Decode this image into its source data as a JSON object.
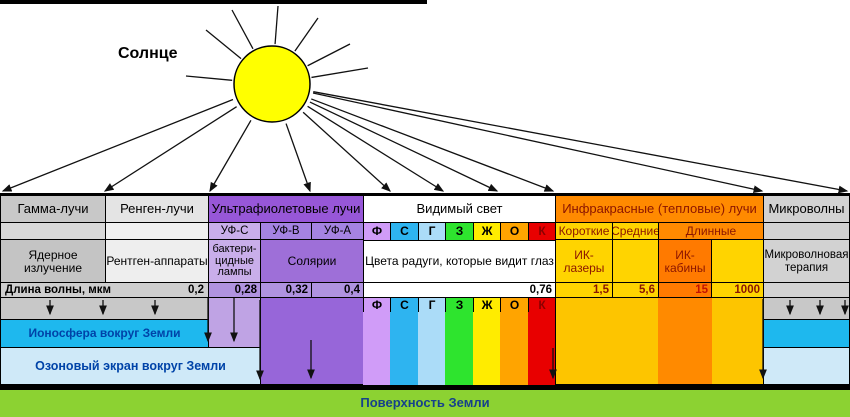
{
  "sun_label": "Солнце",
  "bands": {
    "gamma": {
      "header": "Гамма-лучи",
      "application": "Ядерное излучение"
    },
    "xray": {
      "header": "Ренген-лучи",
      "application": "Рентген-аппараты"
    },
    "uv": {
      "header": "Ультрафиолетовые лучи",
      "sub_bands": [
        "УФ-С",
        "УФ-В",
        "УФ-А"
      ],
      "application_uvc": "бактери-цидные лампы",
      "application_uvba": "Солярии"
    },
    "visible": {
      "header": "Видимый свет",
      "application": "Цвета радуги, которые видит глаз"
    },
    "infrared": {
      "header": "Инфракрасные (тепловые) лучи",
      "sub_bands": [
        "Короткие",
        "Средние",
        "Длинные"
      ],
      "application_short": "ИК-лазеры",
      "application_long": "ИК-кабины"
    },
    "microwave": {
      "header": "Микроволны",
      "application": "Микроволновая терапия"
    }
  },
  "spectrum_letters": [
    {
      "char": "Ф",
      "name": "violet",
      "color": "#d09cf8",
      "text_color": "#000000"
    },
    {
      "char": "С",
      "name": "blue",
      "color": "#2eb4f0",
      "text_color": "#000000"
    },
    {
      "char": "Г",
      "name": "light-blue",
      "color": "#abdcf8",
      "text_color": "#000000"
    },
    {
      "char": "З",
      "name": "green",
      "color": "#2ee42e",
      "text_color": "#000000"
    },
    {
      "char": "Ж",
      "name": "yellow",
      "color": "#ffec00",
      "text_color": "#000000"
    },
    {
      "char": "О",
      "name": "orange",
      "color": "#ffa400",
      "text_color": "#000000"
    },
    {
      "char": "К",
      "name": "red",
      "color": "#e80000",
      "text_color": "#8b0000"
    }
  ],
  "wavelength_row": {
    "label": "Длина волны, мкм",
    "values": [
      "0,2",
      "0,28",
      "0,32",
      "0,4",
      "0,76",
      "1,5",
      "5,6",
      "15",
      "1000"
    ]
  },
  "atmosphere": {
    "ionosphere_label": "Ионосфера вокруг Земли",
    "ozone_label": "Озоновый экран вокруг Земли",
    "surface_label": "Поверхность Земли"
  },
  "colors": {
    "gamma_header": "#c8c8c8",
    "gamma_row2": "#d8d8d8",
    "gamma_row3": "#c4c4c4",
    "xray_header": "#e4e4e4",
    "xray_row2": "#f0f0f0",
    "xray_row3": "#eeeeee",
    "uv_header": "#9757d8",
    "uv_c": "#c9aeea",
    "uv_ba": "#a583e2",
    "uv_solarium": "#9e6fd8",
    "uv_wave": "#b093e0",
    "uv_c_column": "#bfa3e4",
    "uv_block": "#9766d9",
    "white": "#ffffff",
    "ir_header": "#ff8a00",
    "ir_yellow": "#ffd400",
    "ir_orange_cell": "#ff7a00",
    "ir_block": "#fdc500",
    "ir_block_stripe": "#ff8a00",
    "ir_text": "#8b1500",
    "ir_text_bright": "#c41200",
    "micro_gray": "#d2d2d2",
    "wave_gray": "#cecece",
    "lower_gray": "#c8c8c8",
    "ionosphere": "#1eb8ee",
    "ozone": "#cfe9f8",
    "label_blue": "#0043a8",
    "surface_green": "#8cd232",
    "surface_text": "#16418c",
    "sun_fill": "#ffff00"
  }
}
